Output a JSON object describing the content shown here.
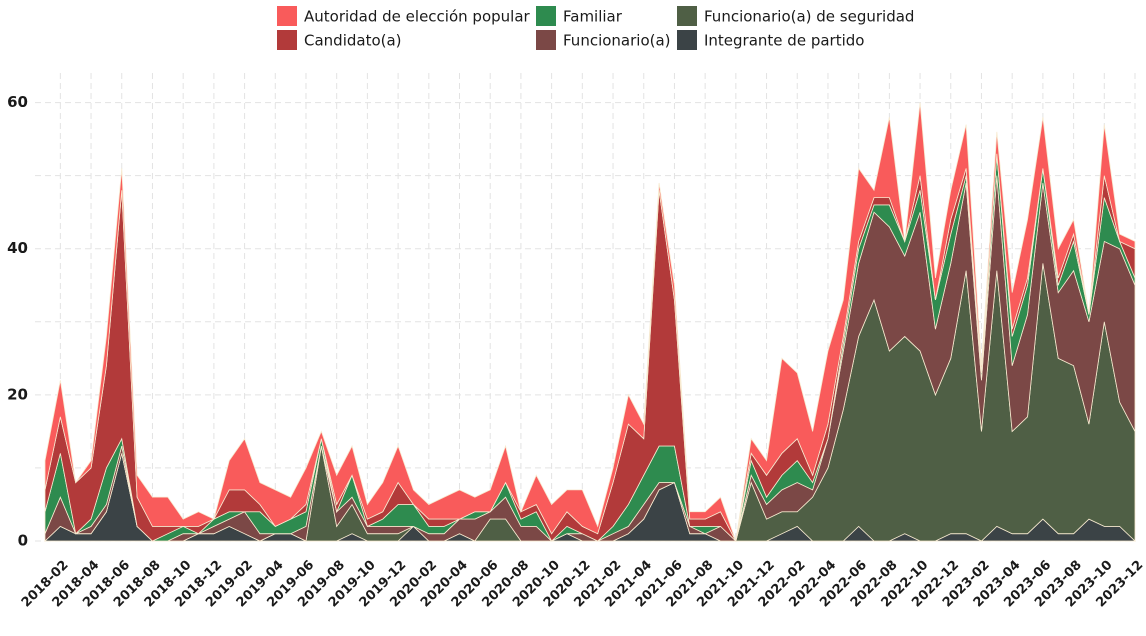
{
  "chart_data": {
    "type": "stacked_area",
    "categories": [
      null,
      "2018-02",
      null,
      "2018-04",
      null,
      "2018-06",
      null,
      "2018-08",
      null,
      "2018-10",
      null,
      "2018-12",
      null,
      "2019-02",
      null,
      "2019-04",
      null,
      "2019-06",
      null,
      "2019-08",
      null,
      "2019-10",
      null,
      "2019-12",
      null,
      "2020-02",
      null,
      "2020-04",
      null,
      "2020-06",
      null,
      "2020-08",
      null,
      "2020-10",
      null,
      "2020-12",
      null,
      "2021-02",
      null,
      "2021-04",
      null,
      "2021-06",
      null,
      "2021-08",
      null,
      "2021-10",
      null,
      "2021-12",
      null,
      "2022-02",
      null,
      "2022-04",
      null,
      "2022-06",
      null,
      "2022-08",
      null,
      "2022-10",
      null,
      "2022-12",
      null,
      "2023-02",
      null,
      "2023-04",
      null,
      "2023-06",
      null,
      "2023-08",
      null,
      "2023-10",
      null,
      "2023-12"
    ],
    "series": [
      {
        "name": "Autoridad de elección popular",
        "color": "#f95b5b",
        "values": [
          4,
          5,
          0,
          1,
          4,
          3,
          3,
          4,
          4,
          1,
          2,
          0,
          4,
          7,
          3,
          5,
          3,
          5,
          1,
          4,
          4,
          2,
          4,
          5,
          2,
          2,
          3,
          4,
          2,
          3,
          5,
          0,
          4,
          4,
          3,
          5,
          1,
          2,
          4,
          2,
          1,
          2,
          1,
          1,
          2,
          0,
          2,
          2,
          13,
          9,
          6,
          10,
          5,
          10,
          1,
          11,
          0,
          10,
          3,
          4,
          6,
          1,
          3,
          5,
          8,
          7,
          4,
          2,
          0,
          7,
          1,
          1
        ]
      },
      {
        "name": "Candidato(a)",
        "color": "#b23a3a",
        "values": [
          3,
          5,
          7,
          7,
          14,
          34,
          4,
          2,
          1,
          0,
          1,
          0,
          3,
          3,
          1,
          0,
          0,
          1,
          0,
          1,
          0,
          1,
          1,
          3,
          0,
          1,
          1,
          0,
          0,
          0,
          0,
          1,
          1,
          1,
          2,
          1,
          1,
          6,
          11,
          5,
          35,
          20,
          1,
          1,
          2,
          0,
          1,
          3,
          3,
          3,
          1,
          2,
          1,
          1,
          1,
          1,
          0,
          2,
          0,
          2,
          1,
          0,
          0,
          1,
          1,
          0,
          1,
          1,
          0,
          3,
          0,
          4
        ]
      },
      {
        "name": "Familiar",
        "color": "#2e8b4f",
        "values": [
          3,
          6,
          0,
          1,
          5,
          1,
          0,
          0,
          1,
          1,
          0,
          1,
          1,
          0,
          3,
          1,
          2,
          2,
          1,
          0,
          3,
          0,
          1,
          3,
          3,
          1,
          1,
          0,
          1,
          0,
          2,
          1,
          2,
          0,
          1,
          0,
          0,
          1,
          3,
          4,
          5,
          5,
          0,
          1,
          0,
          0,
          2,
          1,
          2,
          3,
          1,
          0,
          1,
          2,
          1,
          3,
          2,
          3,
          4,
          4,
          1,
          1,
          3,
          4,
          4,
          2,
          1,
          4,
          1,
          6,
          1,
          1
        ]
      },
      {
        "name": "Funcionario(a)",
        "color": "#7b4846",
        "values": [
          1,
          4,
          0,
          1,
          1,
          1,
          0,
          0,
          0,
          1,
          0,
          1,
          1,
          3,
          1,
          0,
          0,
          2,
          0,
          2,
          1,
          1,
          1,
          1,
          0,
          1,
          1,
          2,
          3,
          1,
          3,
          2,
          2,
          0,
          0,
          1,
          0,
          1,
          1,
          2,
          1,
          0,
          1,
          0,
          2,
          0,
          1,
          2,
          3,
          4,
          1,
          4,
          8,
          10,
          12,
          17,
          11,
          19,
          9,
          13,
          12,
          7,
          13,
          9,
          14,
          11,
          9,
          13,
          14,
          11,
          21,
          20
        ]
      },
      {
        "name": "Funcionario(a) de seguridad",
        "color": "#4f5f45",
        "values": [
          0,
          0,
          0,
          0,
          0,
          0,
          0,
          0,
          0,
          0,
          0,
          0,
          0,
          0,
          0,
          0,
          0,
          0,
          13,
          2,
          4,
          1,
          1,
          1,
          0,
          0,
          0,
          0,
          0,
          3,
          3,
          0,
          0,
          0,
          0,
          0,
          0,
          0,
          0,
          0,
          0,
          0,
          0,
          0,
          0,
          0,
          8,
          3,
          3,
          2,
          6,
          10,
          18,
          26,
          33,
          26,
          27,
          26,
          20,
          24,
          36,
          15,
          35,
          14,
          16,
          35,
          24,
          23,
          13,
          28,
          17,
          15
        ]
      },
      {
        "name": "Integrante de partido",
        "color": "#3b4346",
        "values": [
          0,
          2,
          1,
          1,
          4,
          12,
          2,
          0,
          0,
          0,
          1,
          1,
          2,
          1,
          0,
          1,
          1,
          0,
          0,
          0,
          1,
          0,
          0,
          0,
          2,
          0,
          0,
          1,
          0,
          0,
          0,
          0,
          0,
          0,
          1,
          0,
          0,
          0,
          1,
          3,
          7,
          8,
          1,
          1,
          0,
          0,
          0,
          0,
          1,
          2,
          0,
          0,
          0,
          2,
          0,
          0,
          1,
          0,
          0,
          1,
          1,
          0,
          2,
          1,
          1,
          3,
          1,
          1,
          3,
          2,
          2,
          0
        ]
      }
    ],
    "ylim": [
      0,
      62
    ],
    "yticks": [
      0,
      20,
      40,
      60
    ],
    "grid": true
  }
}
